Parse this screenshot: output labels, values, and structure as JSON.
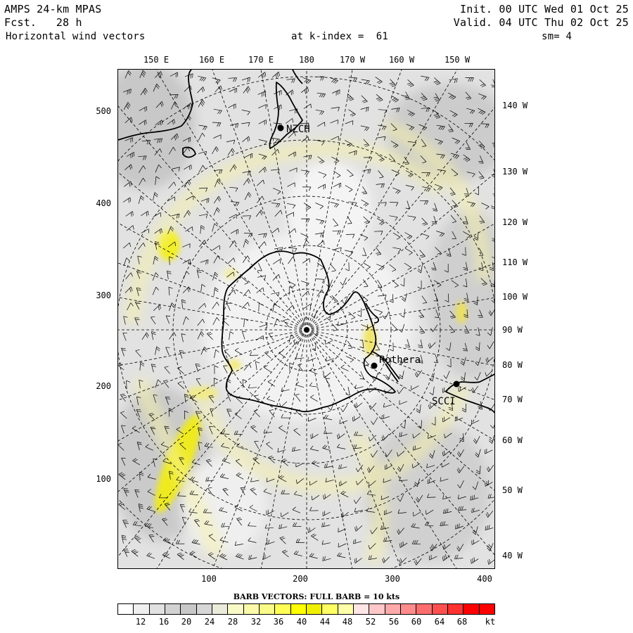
{
  "header": {
    "model": "AMPS 24-km MPAS",
    "fcst": "Fcst.   28 h",
    "field": "Horizontal wind vectors",
    "init": "Init. 00 UTC Wed 01 Oct 25",
    "valid": "Valid. 04 UTC Thu 02 Oct 25",
    "level": "at k-index =  61",
    "smooth": "sm= 4"
  },
  "top_lon_labels": [
    "150 E",
    "160 E",
    "170 E",
    "180",
    "170 W",
    "160 W",
    "150 W"
  ],
  "right_lon_labels": [
    "140 W",
    "130 W",
    "120 W",
    "110 W",
    "100 W",
    "90 W",
    "80 W",
    "70 W",
    "60 W",
    "50 W",
    "40 W"
  ],
  "y_ticks": [
    "500",
    "400",
    "300",
    "200",
    "100"
  ],
  "x_ticks": [
    "100",
    "200",
    "300",
    "400"
  ],
  "stations": [
    {
      "name": "NZCH"
    },
    {
      "name": "Rothera"
    },
    {
      "name": "SCCI"
    }
  ],
  "legend": {
    "title": "BARB VECTORS:  FULL BARB = 10 kts",
    "labels": [
      "12",
      "16",
      "20",
      "24",
      "28",
      "32",
      "36",
      "40",
      "44",
      "48",
      "52",
      "56",
      "60",
      "64",
      "68"
    ],
    "unit": "kt",
    "colors": [
      "#ffffff",
      "#f0f0f0",
      "#e1e1e1",
      "#d2d2d2",
      "#c8c8c8",
      "#d7d7d7",
      "#ebebdc",
      "#fafac8",
      "#fafaaa",
      "#fafa87",
      "#ffff55",
      "#ffff00",
      "#f0f000",
      "#ffff64",
      "#ffffaa",
      "#ffe6e6",
      "#ffc8c8",
      "#ffaaaa",
      "#ff8c8c",
      "#ff6e6e",
      "#ff5050",
      "#ff3232",
      "#ff0000",
      "#ff0000"
    ]
  }
}
